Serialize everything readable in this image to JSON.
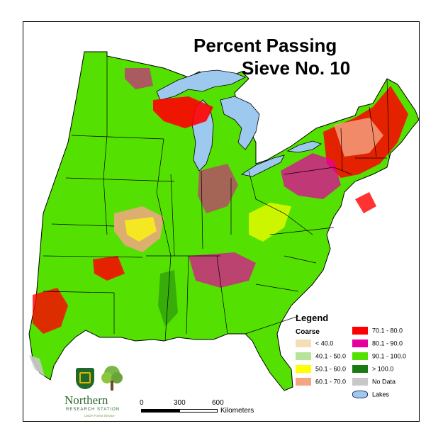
{
  "title": {
    "line1": "Percent Passing",
    "line2": "Sieve No. 10"
  },
  "legend": {
    "heading": "Legend",
    "group_label": "Coarse",
    "items": [
      {
        "label": "< 40.0",
        "color": "#f5deb3"
      },
      {
        "label": "40.1 - 50.0",
        "color": "#b7e39a"
      },
      {
        "label": "50.1 - 60.0",
        "color": "#ffff00"
      },
      {
        "label": "60.1 - 70.0",
        "color": "#f4a582"
      },
      {
        "label": "70.1 - 80.0",
        "color": "#ff0000"
      },
      {
        "label": "80.1 - 90.0",
        "color": "#e6009e"
      },
      {
        "label": "90.1 - 100.0",
        "color": "#54e000"
      },
      {
        "label": "> 100.0",
        "color": "#1a7a12"
      },
      {
        "label": "No Data",
        "color": "#c8c8c8"
      },
      {
        "label": "Lakes",
        "color": "#9ec9ee"
      }
    ]
  },
  "scale_bar": {
    "ticks": [
      "0",
      "300",
      "600"
    ],
    "units": "Kilometers"
  },
  "logo": {
    "name": "Northern",
    "subtitle": "RESEARCH STATION",
    "agency": "USDA Forest Service"
  }
}
